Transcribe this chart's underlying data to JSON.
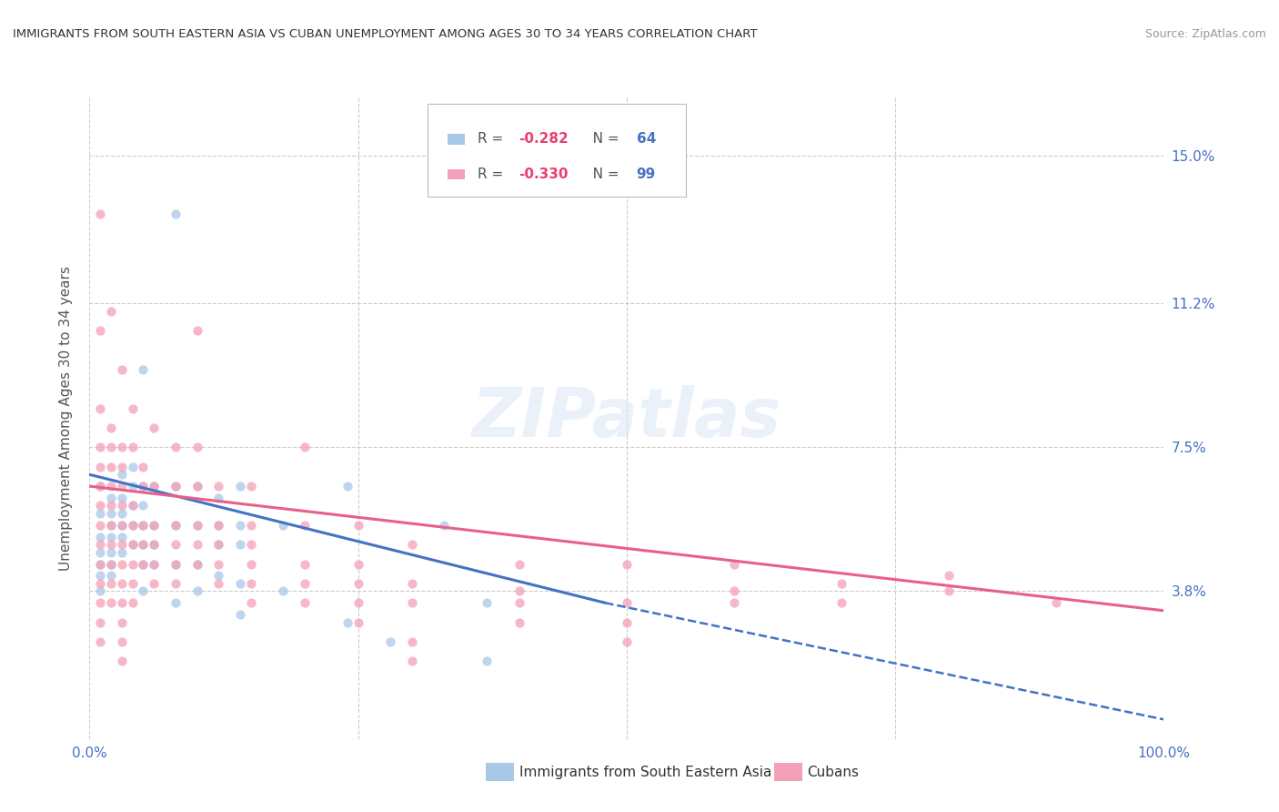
{
  "title": "IMMIGRANTS FROM SOUTH EASTERN ASIA VS CUBAN UNEMPLOYMENT AMONG AGES 30 TO 34 YEARS CORRELATION CHART",
  "source": "Source: ZipAtlas.com",
  "ylabel": "Unemployment Among Ages 30 to 34 years",
  "xlim": [
    0,
    100
  ],
  "ylim": [
    0,
    16.5
  ],
  "yticks": [
    0,
    3.8,
    7.5,
    11.2,
    15.0
  ],
  "ytick_labels": [
    "",
    "3.8%",
    "7.5%",
    "11.2%",
    "15.0%"
  ],
  "color_blue": "#a8c8e8",
  "color_pink": "#f4a0b8",
  "trendline_blue": [
    [
      0,
      6.8
    ],
    [
      48,
      3.5
    ]
  ],
  "trendline_blue_dashed": [
    [
      48,
      3.5
    ],
    [
      100,
      0.5
    ]
  ],
  "trendline_pink": [
    [
      0,
      6.5
    ],
    [
      100,
      3.3
    ]
  ],
  "blue_points": [
    [
      1,
      5.8
    ],
    [
      1,
      5.2
    ],
    [
      1,
      4.8
    ],
    [
      1,
      4.5
    ],
    [
      1,
      4.2
    ],
    [
      1,
      3.8
    ],
    [
      1,
      6.5
    ],
    [
      2,
      6.2
    ],
    [
      2,
      5.8
    ],
    [
      2,
      5.5
    ],
    [
      2,
      5.2
    ],
    [
      2,
      4.8
    ],
    [
      2,
      4.5
    ],
    [
      2,
      4.2
    ],
    [
      3,
      6.8
    ],
    [
      3,
      6.2
    ],
    [
      3,
      5.8
    ],
    [
      3,
      5.5
    ],
    [
      3,
      5.2
    ],
    [
      3,
      4.8
    ],
    [
      4,
      7.0
    ],
    [
      4,
      6.5
    ],
    [
      4,
      6.0
    ],
    [
      4,
      5.5
    ],
    [
      4,
      5.0
    ],
    [
      5,
      9.5
    ],
    [
      5,
      6.5
    ],
    [
      5,
      6.0
    ],
    [
      5,
      5.5
    ],
    [
      5,
      5.0
    ],
    [
      5,
      4.5
    ],
    [
      5,
      3.8
    ],
    [
      6,
      6.5
    ],
    [
      6,
      5.5
    ],
    [
      6,
      5.0
    ],
    [
      6,
      4.5
    ],
    [
      8,
      13.5
    ],
    [
      8,
      6.5
    ],
    [
      8,
      5.5
    ],
    [
      8,
      4.5
    ],
    [
      8,
      3.5
    ],
    [
      10,
      6.5
    ],
    [
      10,
      5.5
    ],
    [
      10,
      4.5
    ],
    [
      10,
      3.8
    ],
    [
      12,
      6.2
    ],
    [
      12,
      5.5
    ],
    [
      12,
      5.0
    ],
    [
      12,
      4.2
    ],
    [
      14,
      6.5
    ],
    [
      14,
      5.5
    ],
    [
      14,
      5.0
    ],
    [
      14,
      4.0
    ],
    [
      14,
      3.2
    ],
    [
      18,
      5.5
    ],
    [
      18,
      3.8
    ],
    [
      24,
      6.5
    ],
    [
      24,
      3.0
    ],
    [
      28,
      2.5
    ],
    [
      33,
      5.5
    ],
    [
      37,
      3.5
    ],
    [
      37,
      2.0
    ]
  ],
  "pink_points": [
    [
      1,
      13.5
    ],
    [
      1,
      10.5
    ],
    [
      1,
      8.5
    ],
    [
      1,
      7.5
    ],
    [
      1,
      7.0
    ],
    [
      1,
      6.5
    ],
    [
      1,
      6.0
    ],
    [
      1,
      5.5
    ],
    [
      1,
      5.0
    ],
    [
      1,
      4.5
    ],
    [
      1,
      4.0
    ],
    [
      1,
      3.5
    ],
    [
      1,
      3.0
    ],
    [
      1,
      2.5
    ],
    [
      2,
      11.0
    ],
    [
      2,
      8.0
    ],
    [
      2,
      7.5
    ],
    [
      2,
      7.0
    ],
    [
      2,
      6.5
    ],
    [
      2,
      6.0
    ],
    [
      2,
      5.5
    ],
    [
      2,
      5.0
    ],
    [
      2,
      4.5
    ],
    [
      2,
      4.0
    ],
    [
      2,
      3.5
    ],
    [
      3,
      9.5
    ],
    [
      3,
      7.5
    ],
    [
      3,
      7.0
    ],
    [
      3,
      6.5
    ],
    [
      3,
      6.0
    ],
    [
      3,
      5.5
    ],
    [
      3,
      5.0
    ],
    [
      3,
      4.5
    ],
    [
      3,
      4.0
    ],
    [
      3,
      3.5
    ],
    [
      3,
      3.0
    ],
    [
      3,
      2.5
    ],
    [
      3,
      2.0
    ],
    [
      4,
      8.5
    ],
    [
      4,
      7.5
    ],
    [
      4,
      6.0
    ],
    [
      4,
      5.5
    ],
    [
      4,
      5.0
    ],
    [
      4,
      4.5
    ],
    [
      4,
      4.0
    ],
    [
      4,
      3.5
    ],
    [
      5,
      7.0
    ],
    [
      5,
      6.5
    ],
    [
      5,
      5.5
    ],
    [
      5,
      5.0
    ],
    [
      5,
      4.5
    ],
    [
      6,
      8.0
    ],
    [
      6,
      6.5
    ],
    [
      6,
      5.5
    ],
    [
      6,
      5.0
    ],
    [
      6,
      4.5
    ],
    [
      6,
      4.0
    ],
    [
      8,
      7.5
    ],
    [
      8,
      6.5
    ],
    [
      8,
      5.5
    ],
    [
      8,
      5.0
    ],
    [
      8,
      4.5
    ],
    [
      8,
      4.0
    ],
    [
      10,
      10.5
    ],
    [
      10,
      7.5
    ],
    [
      10,
      6.5
    ],
    [
      10,
      5.5
    ],
    [
      10,
      5.0
    ],
    [
      10,
      4.5
    ],
    [
      12,
      6.5
    ],
    [
      12,
      5.5
    ],
    [
      12,
      5.0
    ],
    [
      12,
      4.5
    ],
    [
      12,
      4.0
    ],
    [
      15,
      6.5
    ],
    [
      15,
      5.5
    ],
    [
      15,
      5.0
    ],
    [
      15,
      4.5
    ],
    [
      15,
      4.0
    ],
    [
      15,
      3.5
    ],
    [
      20,
      7.5
    ],
    [
      20,
      5.5
    ],
    [
      20,
      4.5
    ],
    [
      20,
      4.0
    ],
    [
      20,
      3.5
    ],
    [
      25,
      5.5
    ],
    [
      25,
      4.5
    ],
    [
      25,
      4.0
    ],
    [
      25,
      3.5
    ],
    [
      25,
      3.0
    ],
    [
      30,
      5.0
    ],
    [
      30,
      4.0
    ],
    [
      30,
      3.5
    ],
    [
      30,
      2.5
    ],
    [
      30,
      2.0
    ],
    [
      40,
      4.5
    ],
    [
      40,
      3.8
    ],
    [
      40,
      3.5
    ],
    [
      40,
      3.0
    ],
    [
      50,
      4.5
    ],
    [
      50,
      3.5
    ],
    [
      50,
      3.0
    ],
    [
      50,
      2.5
    ],
    [
      60,
      4.5
    ],
    [
      60,
      3.8
    ],
    [
      60,
      3.5
    ],
    [
      70,
      4.0
    ],
    [
      70,
      3.5
    ],
    [
      80,
      4.2
    ],
    [
      80,
      3.8
    ],
    [
      90,
      3.5
    ]
  ]
}
